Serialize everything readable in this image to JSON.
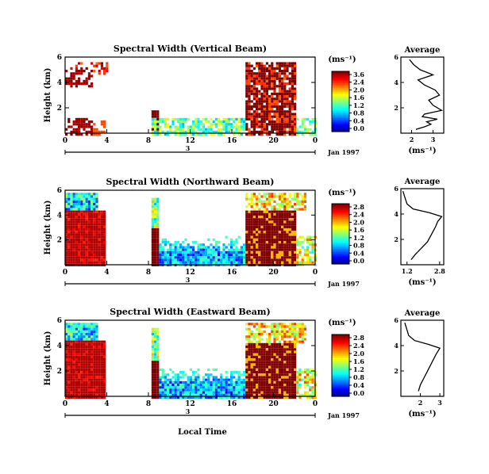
{
  "chart_data": [
    {
      "type": "heatmap",
      "title": "Spectral Width (Vertical Beam)",
      "ylabel": "Height (km)",
      "x_ticks": [
        "0",
        "4",
        "8",
        "12",
        "16",
        "20",
        "0"
      ],
      "xlim": [
        0,
        24
      ],
      "y_ticks": [
        "6",
        "4",
        "2"
      ],
      "ylim": [
        0,
        6
      ],
      "date_label": "Jan 1997",
      "date_tick": "3",
      "colorbar": {
        "unit": "(ms⁻¹)",
        "ticks": [
          "3.6",
          "2.4",
          "2.0",
          "1.6",
          "1.2",
          "0.8",
          "0.4",
          "0.0"
        ]
      },
      "average": {
        "title": "Average",
        "xlabel": "(ms⁻¹)",
        "x_ticks": [
          "2",
          "3"
        ],
        "xlim": [
          1.5,
          3.5
        ],
        "y_ticks": [
          "6",
          "4",
          "2"
        ],
        "profile": [
          [
            2.2,
            0.3
          ],
          [
            2.6,
            0.5
          ],
          [
            2.9,
            0.7
          ],
          [
            2.7,
            0.9
          ],
          [
            3.2,
            1.1
          ],
          [
            2.5,
            1.3
          ],
          [
            2.6,
            1.5
          ],
          [
            3.4,
            1.8
          ],
          [
            3.0,
            2.2
          ],
          [
            2.8,
            2.6
          ],
          [
            3.3,
            3.0
          ],
          [
            3.1,
            3.4
          ],
          [
            2.6,
            3.8
          ],
          [
            2.3,
            4.2
          ],
          [
            3.0,
            4.6
          ],
          [
            2.4,
            5.0
          ],
          [
            2.1,
            5.4
          ],
          [
            1.9,
            5.8
          ]
        ]
      }
    },
    {
      "type": "heatmap",
      "title": "Spectral Width (Northward Beam)",
      "ylabel": "Height (km)",
      "x_ticks": [
        "0",
        "4",
        "8",
        "12",
        "16",
        "20",
        "0"
      ],
      "xlim": [
        0,
        24
      ],
      "y_ticks": [
        "6",
        "4",
        "2"
      ],
      "ylim": [
        0,
        6
      ],
      "date_label": "Jan 1997",
      "date_tick": "3",
      "colorbar": {
        "unit": "(ms⁻¹)",
        "ticks": [
          "2.8",
          "2.4",
          "2.0",
          "1.6",
          "1.2",
          "0.8",
          "0.4",
          "0.0"
        ]
      },
      "average": {
        "title": "Average",
        "xlabel": "(ms⁻¹)",
        "x_ticks": [
          "1.2",
          "2.8"
        ],
        "xlim": [
          0.9,
          3.0
        ],
        "y_ticks": [
          "6",
          "4",
          "2"
        ],
        "profile": [
          [
            1.4,
            0.4
          ],
          [
            1.6,
            0.8
          ],
          [
            1.9,
            1.3
          ],
          [
            2.2,
            1.8
          ],
          [
            2.4,
            2.4
          ],
          [
            2.6,
            3.0
          ],
          [
            2.7,
            3.4
          ],
          [
            2.9,
            3.8
          ],
          [
            2.3,
            4.1
          ],
          [
            1.5,
            4.4
          ],
          [
            1.2,
            4.8
          ],
          [
            1.1,
            5.3
          ],
          [
            1.0,
            5.8
          ]
        ]
      }
    },
    {
      "type": "heatmap",
      "title": "Spectral Width (Eastward Beam)",
      "ylabel": "Height (km)",
      "xlabel": "Local Time",
      "x_ticks": [
        "0",
        "4",
        "8",
        "12",
        "16",
        "20",
        "0"
      ],
      "xlim": [
        0,
        24
      ],
      "y_ticks": [
        "6",
        "4",
        "2"
      ],
      "ylim": [
        0,
        6
      ],
      "date_label": "Jan 1997",
      "date_tick": "3",
      "colorbar": {
        "unit": "(ms⁻¹)",
        "ticks": [
          "2.8",
          "2.4",
          "2.0",
          "1.6",
          "1.2",
          "0.8",
          "0.4",
          "0.0"
        ]
      },
      "average": {
        "title": "Average",
        "xlabel": "(ms⁻¹)",
        "x_ticks": [
          "2",
          "3"
        ],
        "xlim": [
          1.0,
          3.2
        ],
        "y_ticks": [
          "6",
          "4",
          "2"
        ],
        "profile": [
          [
            1.9,
            0.4
          ],
          [
            2.0,
            0.9
          ],
          [
            2.2,
            1.5
          ],
          [
            2.4,
            2.1
          ],
          [
            2.6,
            2.7
          ],
          [
            2.8,
            3.3
          ],
          [
            3.0,
            3.8
          ],
          [
            2.4,
            4.1
          ],
          [
            1.7,
            4.4
          ],
          [
            1.4,
            4.8
          ],
          [
            1.3,
            5.3
          ],
          [
            1.2,
            5.8
          ]
        ]
      }
    }
  ]
}
